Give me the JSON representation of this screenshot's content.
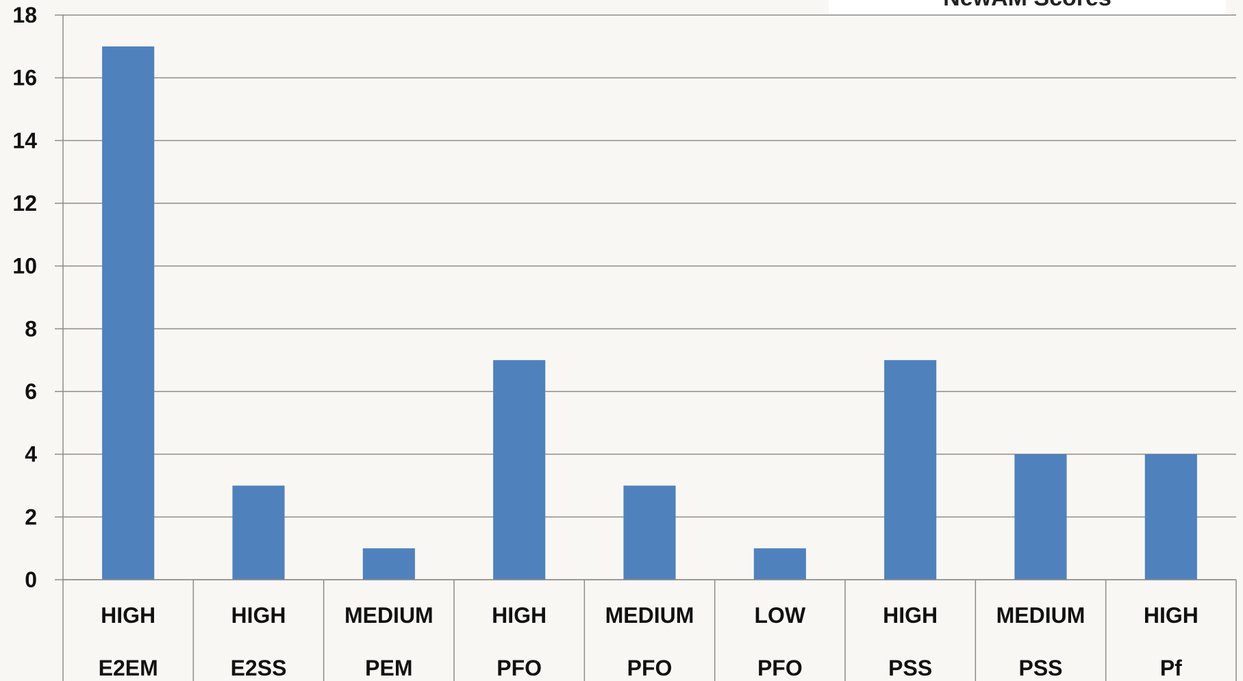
{
  "chart_data": {
    "type": "bar",
    "categories": [
      [
        "HIGH",
        "E2EM"
      ],
      [
        "HIGH",
        "E2SS"
      ],
      [
        "MEDIUM",
        "PEM"
      ],
      [
        "HIGH",
        "PFO"
      ],
      [
        "MEDIUM",
        "PFO"
      ],
      [
        "LOW",
        "PFO"
      ],
      [
        "HIGH",
        "PSS"
      ],
      [
        "MEDIUM",
        "PSS"
      ],
      [
        "HIGH",
        "Pf"
      ]
    ],
    "series": [
      {
        "name": "NewAM Scores",
        "values": [
          17,
          3,
          1,
          7,
          3,
          1,
          7,
          4,
          4
        ]
      }
    ],
    "ylim": [
      0,
      18
    ],
    "yticks": [
      0,
      2,
      4,
      6,
      8,
      10,
      12,
      14,
      16,
      18
    ],
    "title": "",
    "xlabel": "",
    "ylabel": "",
    "grid": true,
    "legend_position": "top-right",
    "colors": {
      "bar": "#4f81bd",
      "grid": "#8c8c8c",
      "background": "#f8f7f3"
    }
  }
}
